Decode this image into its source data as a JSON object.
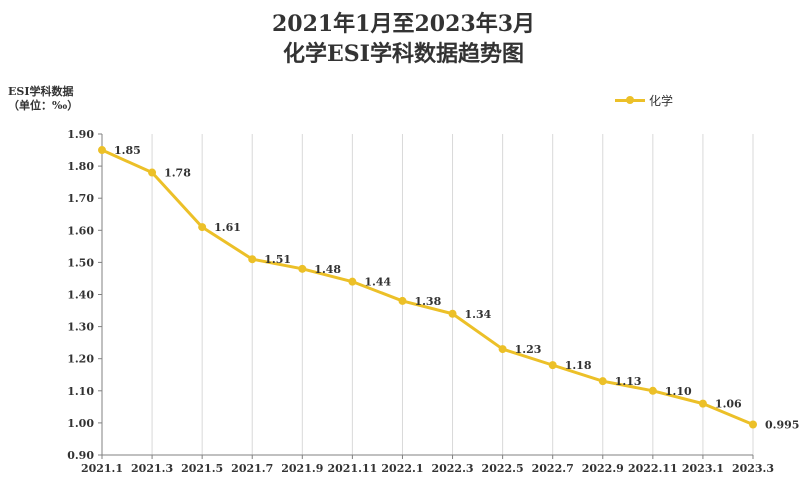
{
  "title_line1": "2021年1月至2023年3月",
  "title_line2": "化学ESI学科数据趋势图",
  "colors": {
    "series": "#ECC028",
    "grid": "#D9D9D9",
    "axis": "#808080",
    "text": "#333333"
  },
  "chart_data": {
    "type": "line",
    "title": "2021年1月至2023年3月 化学ESI学科数据趋势图",
    "ylabel_line1": "ESI学科数据",
    "ylabel_line2": "（单位：‰）",
    "categories": [
      "2021.1",
      "2021.3",
      "2021.5",
      "2021.7",
      "2021.9",
      "2021.11",
      "2022.1",
      "2022.3",
      "2022.5",
      "2022.7",
      "2022.9",
      "2022.11",
      "2023.1",
      "2023.3"
    ],
    "series": [
      {
        "name": "化学",
        "values": [
          1.85,
          1.78,
          1.61,
          1.51,
          1.48,
          1.44,
          1.38,
          1.34,
          1.23,
          1.18,
          1.13,
          1.1,
          1.06,
          0.995
        ],
        "labels": [
          "1.85",
          "1.78",
          "1.61",
          "1.51",
          "1.48",
          "1.44",
          "1.38",
          "1.34",
          "1.23",
          "1.18",
          "1.13",
          "1.10",
          "1.06",
          "0.995"
        ]
      }
    ],
    "yticks": [
      "0.90",
      "1.00",
      "1.10",
      "1.20",
      "1.30",
      "1.40",
      "1.50",
      "1.60",
      "1.70",
      "1.80",
      "1.90"
    ],
    "ylim": [
      0.9,
      1.9
    ],
    "grid": "vertical",
    "legend": "top-right"
  }
}
